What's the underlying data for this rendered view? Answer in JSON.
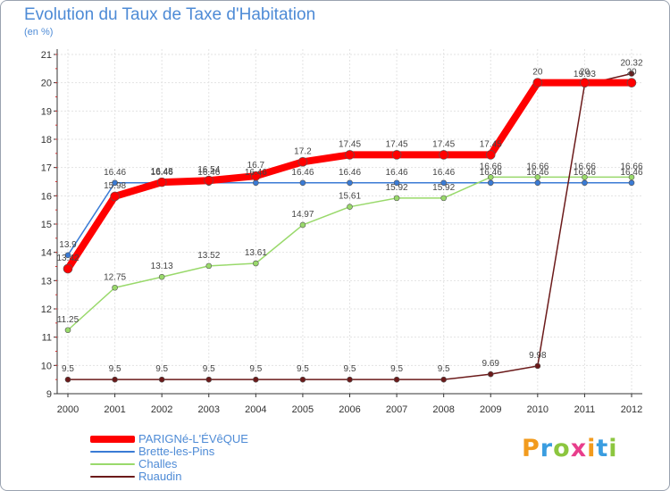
{
  "chart_data": {
    "type": "line",
    "title": "Evolution du Taux de Taxe d'Habitation",
    "subtitle": "(en %)",
    "categories": [
      "2000",
      "2001",
      "2002",
      "2003",
      "2004",
      "2005",
      "2006",
      "2007",
      "2008",
      "2009",
      "2010",
      "2011",
      "2012"
    ],
    "ylim": [
      9,
      21
    ],
    "yticks": [
      9,
      10,
      11,
      12,
      13,
      14,
      15,
      16,
      17,
      18,
      19,
      20,
      21
    ],
    "grid": true,
    "legend_position": "bottom-left",
    "series": [
      {
        "name": "PARIGNé-L'ÉVêQUE",
        "color": "#ff0000",
        "values": [
          13.42,
          15.98,
          16.48,
          16.54,
          16.7,
          17.2,
          17.45,
          17.45,
          17.45,
          17.45,
          20,
          20,
          20
        ],
        "labels": [
          "13.42",
          "15.98",
          "16.48",
          "16.54",
          "16.7",
          "17.2",
          "17.45",
          "17.45",
          "17.45",
          "17.45",
          "20",
          "20",
          "20"
        ]
      },
      {
        "name": "Brette-les-Pins",
        "color": "#3a7bd5",
        "values": [
          13.9,
          16.46,
          16.46,
          16.46,
          16.46,
          16.46,
          16.46,
          16.46,
          16.46,
          16.46,
          16.46,
          16.46,
          16.46
        ],
        "labels": [
          "13.9",
          "16.46",
          "16.46",
          "16.46",
          "16.46",
          "16.46",
          "16.46",
          "16.46",
          "16.46",
          "16.46",
          "16.46",
          "16.46",
          "16.46"
        ]
      },
      {
        "name": "Challes",
        "color": "#99d96b",
        "values": [
          11.25,
          12.75,
          13.13,
          13.52,
          13.61,
          14.97,
          15.61,
          15.92,
          15.92,
          16.66,
          16.66,
          16.66,
          16.66
        ],
        "labels": [
          "11.25",
          "12.75",
          "13.13",
          "13.52",
          "13.61",
          "14.97",
          "15.61",
          "15.92",
          "15.92",
          "16.66",
          "16.66",
          "16.66",
          "16.66"
        ]
      },
      {
        "name": "Ruaudin",
        "color": "#6b1a1a",
        "values": [
          9.5,
          9.5,
          9.5,
          9.5,
          9.5,
          9.5,
          9.5,
          9.5,
          9.5,
          9.69,
          9.98,
          19.93,
          20.32
        ],
        "labels": [
          "9.5",
          "9.5",
          "9.5",
          "9.5",
          "9.5",
          "9.5",
          "9.5",
          "9.5",
          "9.5",
          "9.69",
          "9.98",
          "19.93",
          "20.32"
        ]
      }
    ]
  },
  "logo": {
    "text": "Proxiti",
    "colors": [
      "#f29b1d",
      "#3a9de0",
      "#8cc63f",
      "#e83e8c",
      "#f29b1d",
      "#3a9de0",
      "#8cc63f"
    ]
  }
}
